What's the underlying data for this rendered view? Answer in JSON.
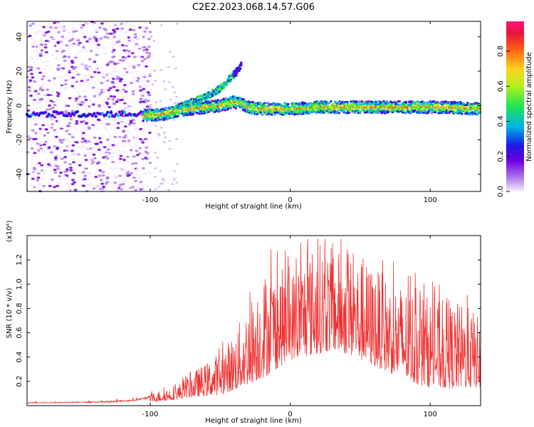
{
  "title": "C2E2.2023.068.14.57.G06",
  "chart_data": [
    {
      "type": "heatmap",
      "xlabel": "Height of straight line (km)",
      "ylabel": "Frequency (Hz)",
      "xlim": [
        -188,
        136
      ],
      "ylim": [
        -50,
        49
      ],
      "xticks": [
        -100,
        0,
        100
      ],
      "yticks": [
        -40,
        -20,
        0,
        20,
        40
      ],
      "colorbar": {
        "label": "Normalized spectral amplitude",
        "range": [
          0.0,
          0.97
        ],
        "ticks": [
          "0.0",
          "0.2",
          "0.4",
          "0.6",
          "0.8"
        ]
      },
      "features": {
        "noise_region_x": [
          -188,
          -100
        ],
        "main_track": [
          [
            -105,
            -6
          ],
          [
            -90,
            -5
          ],
          [
            -80,
            -3
          ],
          [
            -70,
            -2
          ],
          [
            -60,
            -1
          ],
          [
            -50,
            0
          ],
          [
            -40,
            2
          ],
          [
            -35,
            1
          ],
          [
            -30,
            -1
          ],
          [
            -20,
            -2
          ],
          [
            -10,
            -2
          ],
          [
            0,
            -2
          ],
          [
            20,
            -1
          ],
          [
            50,
            -1
          ],
          [
            80,
            -1
          ],
          [
            110,
            -1
          ],
          [
            136,
            -2
          ]
        ],
        "rising_track": [
          [
            -80,
            -1
          ],
          [
            -70,
            2
          ],
          [
            -60,
            5
          ],
          [
            -50,
            10
          ],
          [
            -45,
            14
          ],
          [
            -40,
            18
          ],
          [
            -35,
            23
          ]
        ]
      }
    },
    {
      "type": "line",
      "xlabel": "Height of straight line (km)",
      "ylabel": "SNR (10 * v/v)",
      "y_multiplier": "(x10⁴)",
      "xlim": [
        -188,
        136
      ],
      "ylim": [
        0,
        14000
      ],
      "xticks": [
        -100,
        0,
        100
      ],
      "yticks": [
        "0.2",
        "0.4",
        "0.6",
        "0.8",
        "1.0",
        "1.2"
      ],
      "color": "#ee3333",
      "envelope": [
        [
          -188,
          300
        ],
        [
          -140,
          400
        ],
        [
          -110,
          600
        ],
        [
          -90,
          1400
        ],
        [
          -80,
          1800
        ],
        [
          -70,
          2800
        ],
        [
          -60,
          3500
        ],
        [
          -50,
          4500
        ],
        [
          -40,
          6000
        ],
        [
          -30,
          8500
        ],
        [
          -20,
          11000
        ],
        [
          -10,
          11500
        ],
        [
          0,
          11000
        ],
        [
          10,
          12500
        ],
        [
          20,
          13500
        ],
        [
          30,
          13000
        ],
        [
          40,
          12500
        ],
        [
          50,
          12000
        ],
        [
          60,
          11500
        ],
        [
          70,
          10500
        ],
        [
          80,
          10000
        ],
        [
          90,
          9500
        ],
        [
          100,
          9000
        ],
        [
          110,
          8500
        ],
        [
          120,
          8500
        ],
        [
          130,
          8000
        ],
        [
          136,
          7000
        ]
      ],
      "baseline": [
        [
          -188,
          200
        ],
        [
          -130,
          250
        ],
        [
          -110,
          400
        ],
        [
          -90,
          800
        ],
        [
          -80,
          1000
        ],
        [
          -70,
          1400
        ],
        [
          -60,
          1600
        ],
        [
          -50,
          1800
        ],
        [
          -40,
          2500
        ],
        [
          -30,
          3500
        ],
        [
          -20,
          4500
        ],
        [
          -10,
          6000
        ],
        [
          0,
          7500
        ],
        [
          10,
          8000
        ],
        [
          20,
          8500
        ],
        [
          30,
          9000
        ],
        [
          40,
          8500
        ],
        [
          50,
          7500
        ],
        [
          60,
          6500
        ],
        [
          70,
          5500
        ],
        [
          80,
          4500
        ],
        [
          90,
          3500
        ],
        [
          100,
          3000
        ],
        [
          110,
          2800
        ],
        [
          120,
          2800
        ],
        [
          136,
          3000
        ]
      ]
    }
  ]
}
